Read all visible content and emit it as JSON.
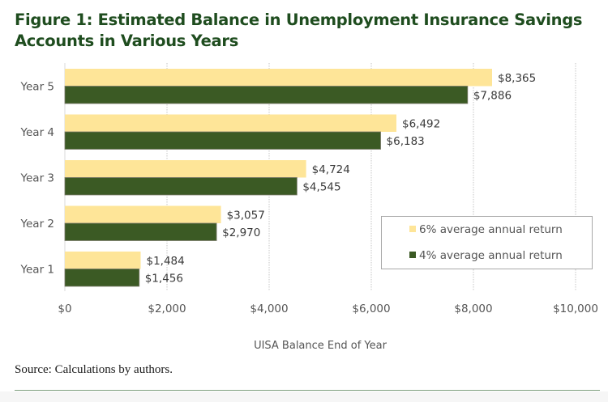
{
  "title_line1": "Figure 1: Estimated Balance in Unemployment Insurance Savings",
  "title_line2": "Accounts in Various Years",
  "source": "Source: Calculations by authors.",
  "colors": {
    "title": "#1f4d1f",
    "series_6pct": "#fee598",
    "series_4pct": "#3b5a24",
    "text": "#555555",
    "grid": "#c8c8c8"
  },
  "chart_data": {
    "type": "bar",
    "orientation": "horizontal",
    "title": "Figure 1: Estimated Balance in Unemployment Insurance Savings Accounts in Various Years",
    "xlabel": "UISA Balance End of Year",
    "ylabel": "",
    "categories": [
      "Year 5",
      "Year 4",
      "Year 3",
      "Year 2",
      "Year 1"
    ],
    "series": [
      {
        "name": "6% average annual return",
        "values": [
          8365,
          6492,
          4724,
          3057,
          1484
        ],
        "labels": [
          "$8,365",
          "$6,492",
          "$4,724",
          "$3,057",
          "$1,484"
        ],
        "color": "#fee598"
      },
      {
        "name": "4% average annual return",
        "values": [
          7886,
          6183,
          4545,
          2970,
          1456
        ],
        "labels": [
          "$7,886",
          "$6,183",
          "$4,545",
          "$2,970",
          "$1,456"
        ],
        "color": "#3b5a24"
      }
    ],
    "xlim": [
      0,
      10000
    ],
    "xticks": [
      0,
      2000,
      4000,
      6000,
      8000,
      10000
    ],
    "xtick_labels": [
      "$0",
      "$2,000",
      "$4,000",
      "$6,000",
      "$8,000",
      "$10,000"
    ],
    "grid": true,
    "legend_position": "bottom-right"
  }
}
